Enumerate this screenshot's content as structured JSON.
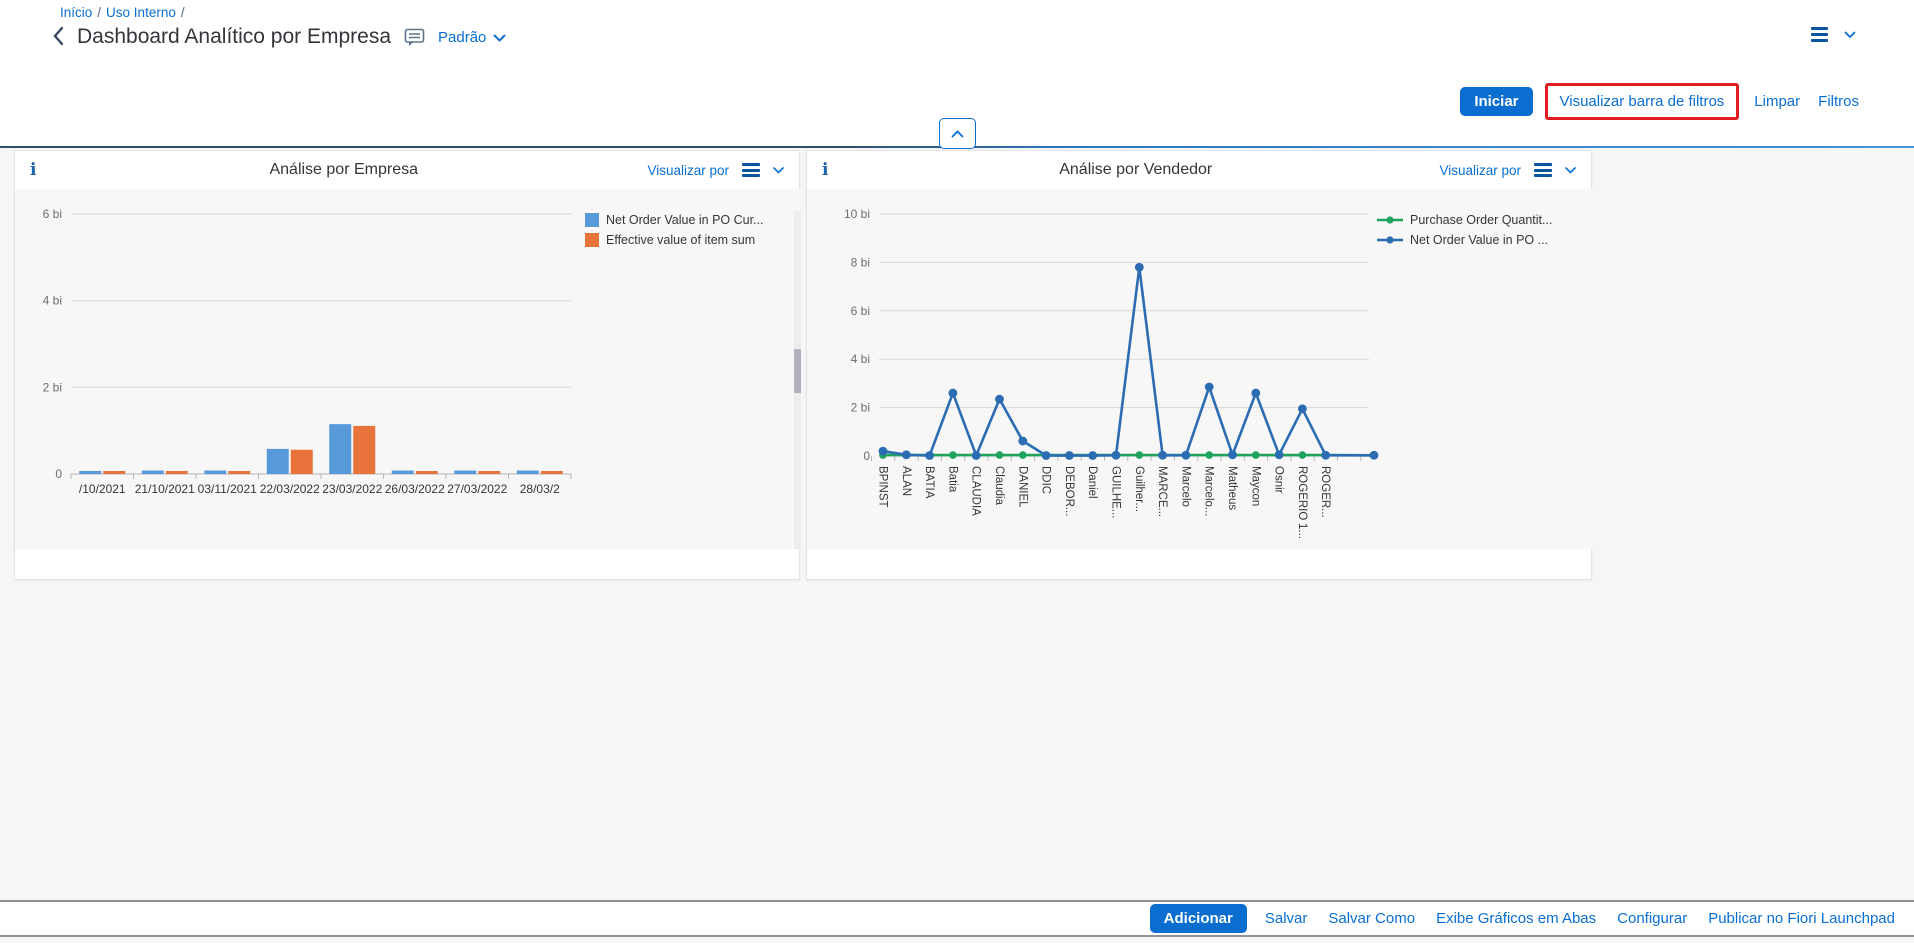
{
  "page": {
    "breadcrumb": {
      "items": [
        "Início",
        "Uso Interno"
      ],
      "separator": "/"
    },
    "title": "Dashboard Analítico por Empresa",
    "variant_selector": "Padrão",
    "toolbar": {
      "iniciar": "Iniciar",
      "visualizar_barra": "Visualizar barra de filtros",
      "limpar": "Limpar",
      "filtros": "Filtros"
    },
    "footer": {
      "adicionar": "Adicionar",
      "salvar": "Salvar",
      "salvar_como": "Salvar Como",
      "exibe_graficos": "Exibe Gráficos em Abas",
      "configurar": "Configurar",
      "publicar": "Publicar no Fiori Launchpad"
    }
  },
  "icons": {
    "info": "i"
  },
  "colors": {
    "accent": "#0a6ed1",
    "link_dark": "#0854a0",
    "highlight_red": "#e11b22",
    "bar_blue": "#5899da",
    "bar_orange": "#e8743b",
    "line_green": "#1fa35c",
    "line_blue": "#2b6cb3"
  },
  "chart_data": [
    {
      "type": "bar",
      "title": "Análise por Empresa",
      "view_by": "Visualizar por",
      "categories": [
        "/10/2021",
        "21/10/2021",
        "03/11/2021",
        "22/03/2022",
        "23/03/2022",
        "26/03/2022",
        "27/03/2022",
        "28/03/2"
      ],
      "series": [
        {
          "name": "Net Order Value in PO Cur...",
          "color": "#5899da",
          "values": [
            0.07,
            0.08,
            0.08,
            0.58,
            1.15,
            0.08,
            0.08,
            0.08
          ]
        },
        {
          "name": "Effective value of item sum",
          "color": "#e8743b",
          "values": [
            0.06,
            0.06,
            0.06,
            0.56,
            1.11,
            0.06,
            0.06,
            0.05
          ]
        }
      ],
      "ylabels": [
        "6 bi",
        "4 bi",
        "2 bi",
        "0"
      ],
      "yvalues": [
        6,
        4,
        2,
        0
      ],
      "ylim": [
        0,
        6.6
      ],
      "unit": "bi",
      "grid": true,
      "legend_position": "right"
    },
    {
      "type": "line",
      "title": "Análise por Vendedor",
      "view_by": "Visualizar por",
      "categories": [
        "BPINST",
        "ALAN",
        "BATIA",
        "Batia",
        "CLAUDIA",
        "Claudia",
        "DANIEL",
        "DDIC",
        "DEBOR...",
        "Daniel",
        "GUILHE...",
        "Guilher...",
        "MARCE...",
        "Marcelo",
        "Marcelo...",
        "Matheus",
        "Maycon",
        "Osnir",
        "ROGERIO",
        "ROGER..."
      ],
      "category_sublabels": {
        "ROGERIO": "1..."
      },
      "series": [
        {
          "name": "Purchase Order Quantit...",
          "color": "#1fa35c",
          "values": [
            0.04,
            0.04,
            0.04,
            0.04,
            0.04,
            0.04,
            0.04,
            0.04,
            0.04,
            0.04,
            0.04,
            0.04,
            0.04,
            0.04,
            0.04,
            0.04,
            0.04,
            0.04,
            0.04,
            0.04
          ]
        },
        {
          "name": "Net Order Value in PO ...",
          "color": "#2b6cb3",
          "values": [
            0.2,
            0.05,
            0.02,
            2.6,
            0.02,
            2.35,
            0.62,
            0.02,
            0.02,
            0.02,
            0.03,
            7.8,
            0.03,
            0.03,
            2.85,
            0.05,
            2.6,
            0.05,
            1.95,
            0.03
          ]
        }
      ],
      "ylabels": [
        "10 bi",
        "8 bi",
        "6 bi",
        "4 bi",
        "2 bi",
        "0"
      ],
      "yvalues": [
        10,
        8,
        6,
        4,
        2,
        0
      ],
      "ylim": [
        0,
        10.5
      ],
      "unit": "bi",
      "grid": true,
      "legend_position": "right"
    }
  ]
}
